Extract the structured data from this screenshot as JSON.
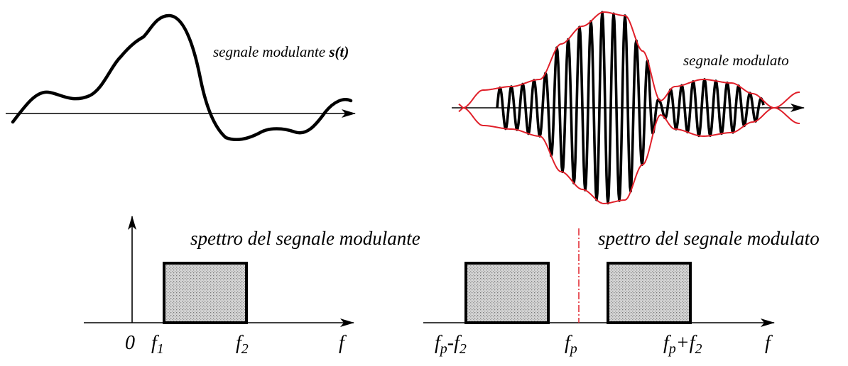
{
  "top_left": {
    "label_prefix": "segnale modulante ",
    "label_symbol": "s(t)"
  },
  "top_right": {
    "label": "segnale modulato"
  },
  "bottom_left": {
    "title": "spettro del segnale modulante",
    "origin_label": "0",
    "f1_main": "f",
    "f1_sub": "1",
    "f2_main": "f",
    "f2_sub": "2",
    "axis_label": "f"
  },
  "bottom_right": {
    "title": "spettro del segnale modulato",
    "lower_main": "f",
    "lower_sub": "p",
    "lower_op": "-f",
    "lower_sub2": "2",
    "center_main": "f",
    "center_sub": "p",
    "upper_main": "f",
    "upper_sub": "p",
    "upper_op": "+f",
    "upper_sub2": "2",
    "axis_label": "f"
  },
  "colors": {
    "signal": "#000000",
    "envelope": "#e0202a",
    "carrier_marker": "#e0202a",
    "band_fill": "#c8c8c8"
  }
}
